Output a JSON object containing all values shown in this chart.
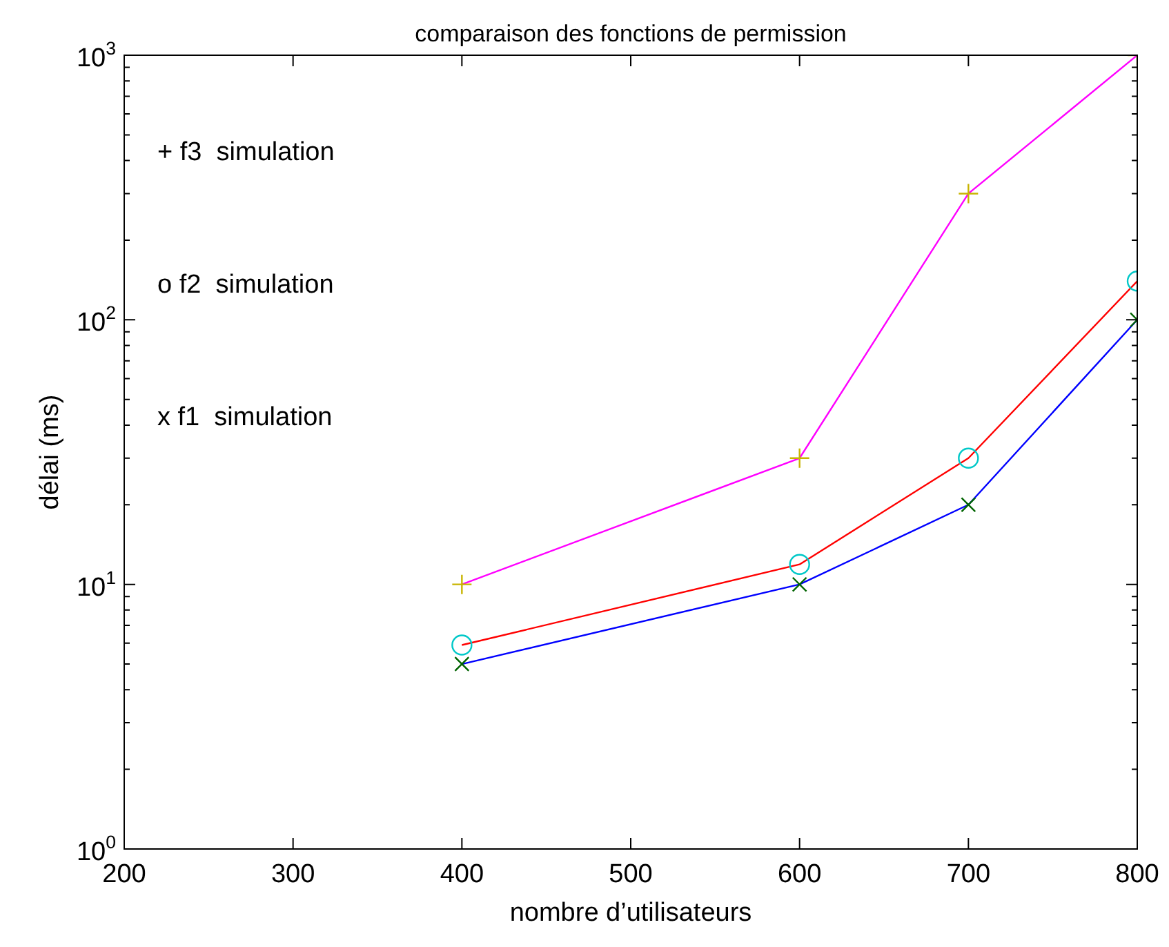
{
  "chart_data": {
    "type": "line",
    "title": "comparaison des fonctions de permission",
    "xlabel": "nombre d’utilisateurs",
    "ylabel": "délai (ms)",
    "x": [
      400,
      600,
      700,
      800
    ],
    "series": [
      {
        "color": "#ff00ff",
        "colors": [
          "#c8b400",
          "#c8b400",
          "#c8b400",
          "#c8b400"
        ],
        "marker": "plus",
        "values": [
          10,
          30,
          300,
          1000
        ]
      },
      {
        "color": "#ff0000",
        "colors": [
          "#00c8c8",
          "#00c8c8",
          "#00c8c8",
          "#00c8c8"
        ],
        "marker": "circle",
        "values": [
          5.9,
          11.9,
          30,
          140
        ]
      },
      {
        "color": "#0000ff",
        "colors": [
          "#006400",
          "#006400",
          "#006400",
          "#006400"
        ],
        "marker": "cross",
        "values": [
          5,
          10,
          20,
          100
        ]
      }
    ],
    "xlim": [
      200,
      800
    ],
    "xticks": [
      200,
      300,
      400,
      500,
      600,
      700,
      800
    ],
    "ylim": [
      1,
      1000
    ],
    "yticks": [
      {
        "value": 1,
        "label": "10$^{0}$"
      },
      {
        "value": 10,
        "label": "10$^{1}$"
      },
      {
        "value": 100,
        "label": "10$^{2}$"
      },
      {
        "value": 1000,
        "label": "10$^{3}$"
      }
    ],
    "log": "y",
    "grid": false,
    "legend": false,
    "line_style": "solid",
    "annotations": [
      "+ f3  simulation",
      "o f2  simulation",
      "x f1  simulation"
    ]
  }
}
